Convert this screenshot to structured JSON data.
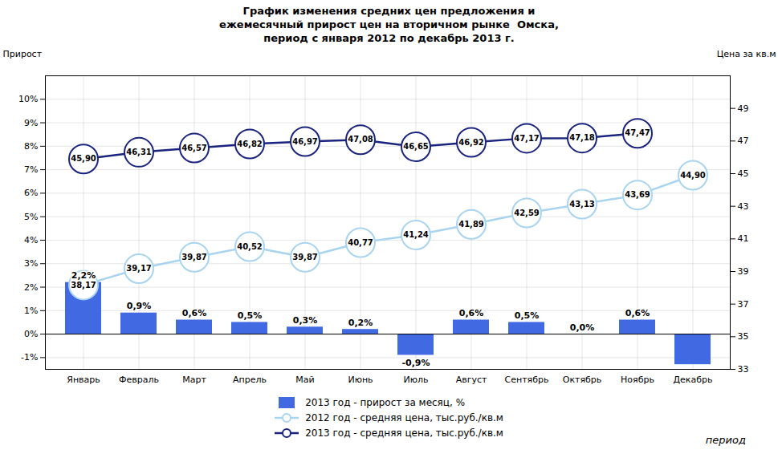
{
  "chart_data": {
    "type": "bar",
    "title": "График изменения средних цен предложения и\nежемесячный прирост цен на вторичном рынке  Омска,\nпериод с января 2012 по декабрь 2013 г.",
    "xlabel": "период",
    "ylabel": "Прирост",
    "y2label": "Цена за кв.м",
    "categories": [
      "Январь",
      "Февраль",
      "Март",
      "Апрель",
      "Май",
      "Июнь",
      "Июль",
      "Август",
      "Сентябрь",
      "Октябрь",
      "Ноябрь",
      "Декабрь"
    ],
    "series": [
      {
        "name": "2013 год - прирост за месяц, %",
        "type": "bar",
        "color": "#4169e1",
        "values": [
          2.2,
          0.9,
          0.6,
          0.5,
          0.3,
          0.2,
          -0.9,
          0.6,
          0.5,
          0.0,
          0.6,
          -1.3
        ],
        "value_labels": [
          "2,2%",
          "0,9%",
          "0,6%",
          "0,5%",
          "0,3%",
          "0,2%",
          "-0,9%",
          "0,6%",
          "0,5%",
          "0,0%",
          "0,6%",
          null
        ]
      },
      {
        "name": "2012 год - средняя цена, тыс.руб./кв.м",
        "type": "line",
        "axis": "y2",
        "color": "#a8d4f0",
        "marker": "circle",
        "values": [
          38.17,
          39.17,
          39.87,
          40.52,
          39.87,
          40.77,
          41.24,
          41.89,
          42.59,
          43.13,
          43.69,
          44.9
        ],
        "value_labels": [
          "38,17",
          "39,17",
          "39,87",
          "40,52",
          "39,87",
          "40,77",
          "41,24",
          "41,89",
          "42,59",
          "43,13",
          "43,69",
          "44,90"
        ]
      },
      {
        "name": "2013 год - средняя цена, тыс.руб./кв.м",
        "type": "line",
        "axis": "y2",
        "color": "#1a237e",
        "marker": "circle",
        "values": [
          45.9,
          46.31,
          46.57,
          46.82,
          46.97,
          47.08,
          46.65,
          46.92,
          47.17,
          47.18,
          47.47,
          null
        ],
        "value_labels": [
          "45,90",
          "46,31",
          "46,57",
          "46,82",
          "46,97",
          "47,08",
          "46,65",
          "46,92",
          "47,17",
          "47,18",
          "47,47",
          null
        ]
      }
    ],
    "ylim": [
      -1.5,
      11.0
    ],
    "yticks": [
      {
        "value": -1,
        "label": "-1%"
      },
      {
        "value": 0,
        "label": "0%"
      },
      {
        "value": 1,
        "label": "1%"
      },
      {
        "value": 2,
        "label": "2%"
      },
      {
        "value": 3,
        "label": "3%"
      },
      {
        "value": 4,
        "label": "4%"
      },
      {
        "value": 5,
        "label": "5%"
      },
      {
        "value": 6,
        "label": "6%"
      },
      {
        "value": 7,
        "label": "7%"
      },
      {
        "value": 8,
        "label": "8%"
      },
      {
        "value": 9,
        "label": "9%"
      },
      {
        "value": 10,
        "label": "10%"
      }
    ],
    "y2lim": [
      33,
      51
    ],
    "y2ticks": [
      33,
      35,
      37,
      39,
      41,
      43,
      45,
      47,
      49
    ],
    "grid": true,
    "legend": "bottom",
    "data_labels": true
  }
}
